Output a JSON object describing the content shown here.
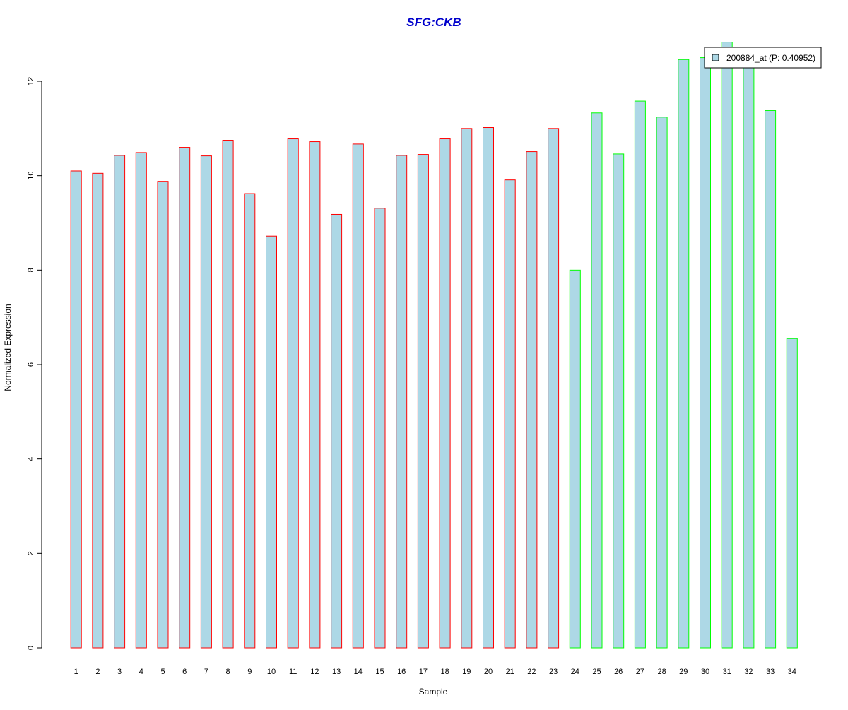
{
  "chart_data": {
    "type": "bar",
    "title": "SFG:CKB",
    "xlabel": "Sample",
    "ylabel": "Normalized Expression",
    "categories": [
      "1",
      "2",
      "3",
      "4",
      "5",
      "6",
      "7",
      "8",
      "9",
      "10",
      "11",
      "12",
      "13",
      "14",
      "15",
      "16",
      "17",
      "18",
      "19",
      "20",
      "21",
      "22",
      "23",
      "24",
      "25",
      "26",
      "27",
      "28",
      "29",
      "30",
      "31",
      "32",
      "33",
      "34"
    ],
    "series": [
      {
        "name": "200884_at (P: 0.40952)",
        "values": [
          10.1,
          10.05,
          10.43,
          10.49,
          9.88,
          10.6,
          10.42,
          10.75,
          9.62,
          8.72,
          10.78,
          10.72,
          9.18,
          10.67,
          9.31,
          10.43,
          10.45,
          10.78,
          11.0,
          11.02,
          9.91,
          10.51,
          11.0,
          8.0,
          11.33,
          10.46,
          11.58,
          11.24,
          12.46,
          12.5,
          12.83,
          12.4,
          11.38,
          6.55
        ]
      }
    ],
    "ylim": [
      0,
      12.9
    ],
    "yticks": [
      0,
      2,
      4,
      6,
      8,
      10,
      12
    ],
    "group_split_after_index": 22,
    "legend_position": "top-right",
    "grid": false,
    "colors": {
      "bar_fill": "#add8e6",
      "group1_border": "#ff0000",
      "group2_border": "#00ff00",
      "title": "#0000cc",
      "axis": "#000000"
    }
  }
}
